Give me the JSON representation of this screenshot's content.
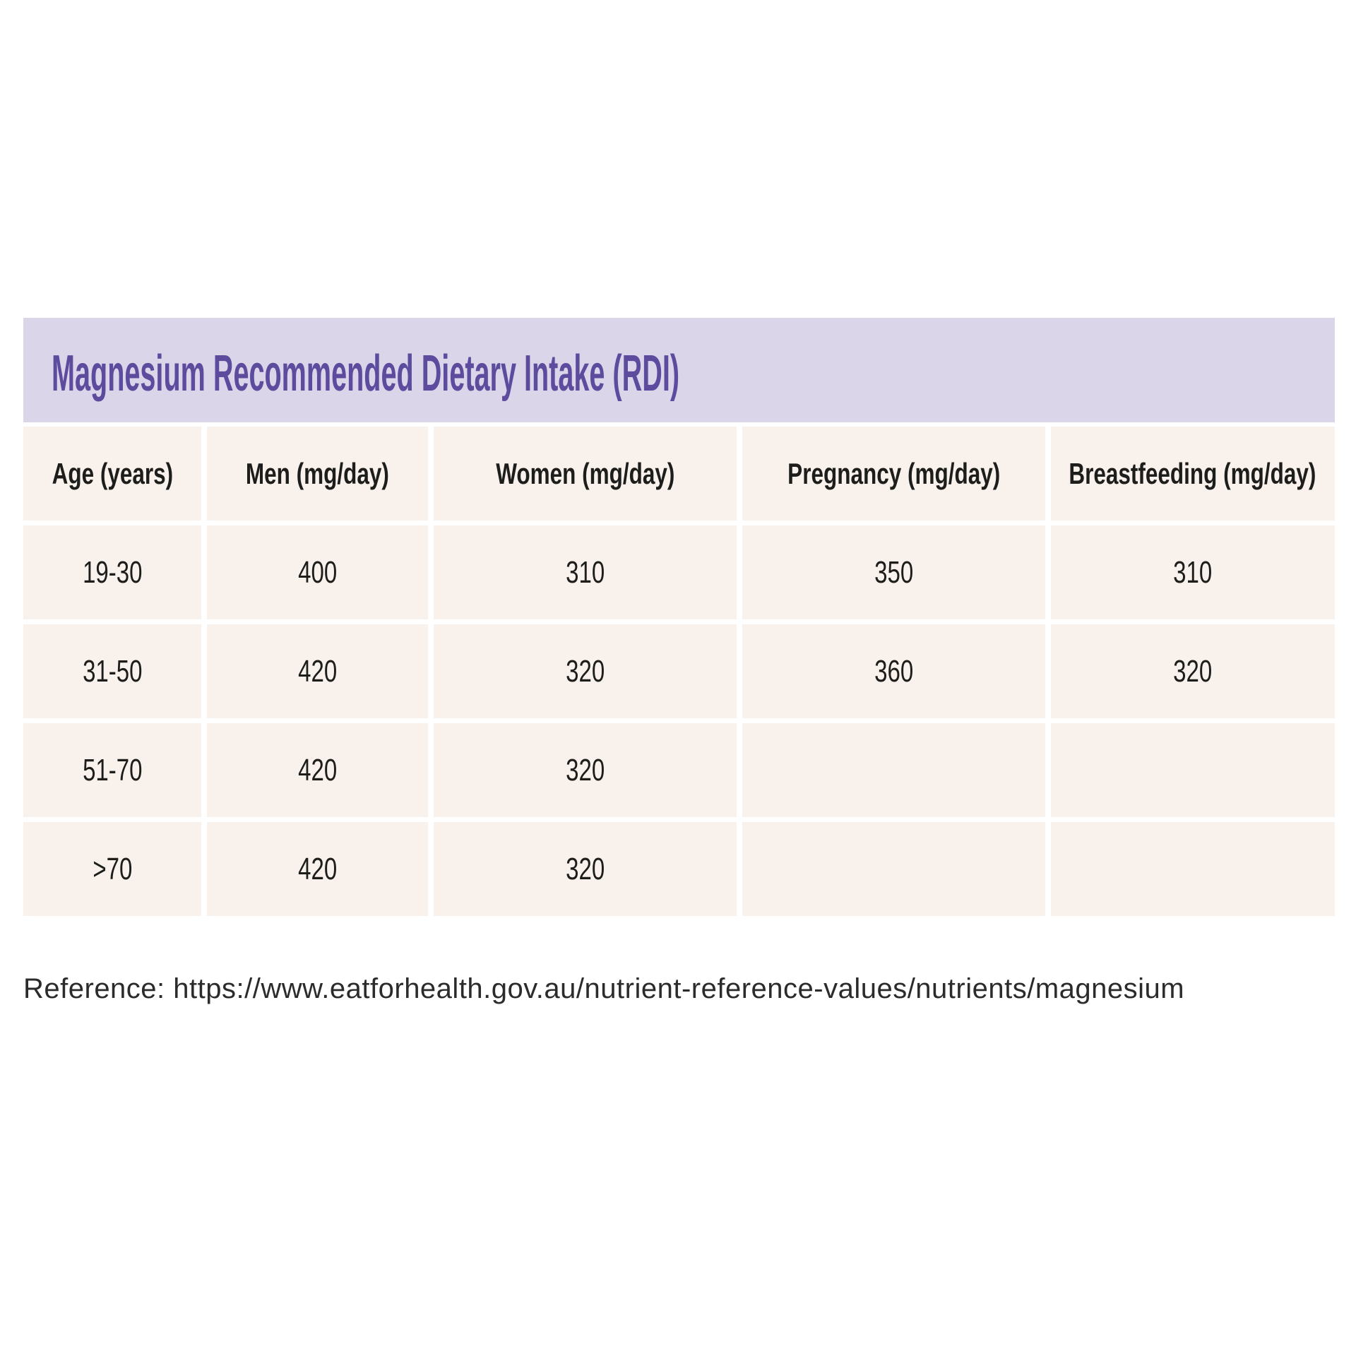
{
  "title": "Magnesium Recommended Dietary Intake (RDI)",
  "reference_line": "Reference: https://www.eatforhealth.gov.au/nutrient-reference-values/nutrients/magnesium",
  "colors": {
    "title_bar_background": "#dbd5ea",
    "title_text": "#5d4b9e",
    "cell_background": "#f8f1ec",
    "cell_text": "#1d1d1b",
    "page_background": "#ffffff",
    "reference_text": "#2b2b2b"
  },
  "table": {
    "columns": [
      "Age (years)",
      "Men (mg/day)",
      "Women (mg/day)",
      "Pregnancy (mg/day)",
      "Breastfeeding (mg/day)"
    ],
    "rows": [
      [
        "19-30",
        "400",
        "310",
        "350",
        "310"
      ],
      [
        "31-50",
        "420",
        "320",
        "360",
        "320"
      ],
      [
        "51-70",
        "420",
        "320",
        "",
        ""
      ],
      [
        ">70",
        "420",
        "320",
        "",
        ""
      ]
    ]
  },
  "chart_data": {
    "type": "table",
    "title": "Magnesium Recommended Dietary Intake (RDI)",
    "columns": [
      "Age (years)",
      "Men (mg/day)",
      "Women (mg/day)",
      "Pregnancy (mg/day)",
      "Breastfeeding (mg/day)"
    ],
    "rows": [
      {
        "age_years": "19-30",
        "men_mg_day": 400,
        "women_mg_day": 310,
        "pregnancy_mg_day": 350,
        "breastfeeding_mg_day": 310
      },
      {
        "age_years": "31-50",
        "men_mg_day": 420,
        "women_mg_day": 320,
        "pregnancy_mg_day": 360,
        "breastfeeding_mg_day": 320
      },
      {
        "age_years": "51-70",
        "men_mg_day": 420,
        "women_mg_day": 320,
        "pregnancy_mg_day": null,
        "breastfeeding_mg_day": null
      },
      {
        "age_years": ">70",
        "men_mg_day": 420,
        "women_mg_day": 320,
        "pregnancy_mg_day": null,
        "breastfeeding_mg_day": null
      }
    ],
    "reference": "https://www.eatforhealth.gov.au/nutrient-reference-values/nutrients/magnesium"
  }
}
